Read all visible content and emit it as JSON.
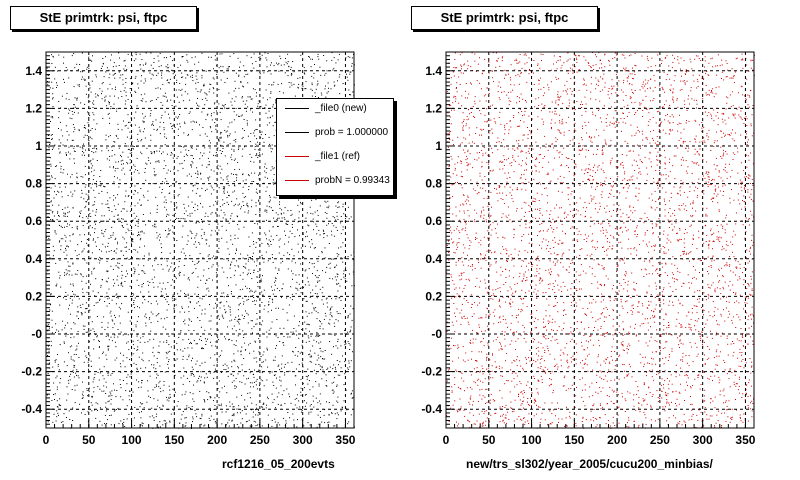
{
  "panels": [
    {
      "title": "StE primtrk: psi, ftpc",
      "footer": "rcf1216_05_200evts"
    },
    {
      "title": "StE primtrk: psi, ftpc",
      "footer": "new/trs_sl302/year_2005/cucu200_minbias/"
    }
  ],
  "legend": {
    "entries": [
      {
        "label": "_file0 (new)",
        "color": "#000000"
      },
      {
        "label": "prob = 1.000000",
        "color": "#000000"
      },
      {
        "label": "_file1 (ref)",
        "color": "#cc0000"
      },
      {
        "label": "probN = 0.99343",
        "color": "#cc0000"
      }
    ]
  },
  "colors": {
    "new_points": "#000000",
    "ref_points": "#cc0000",
    "axis": "#000000",
    "grid": "#000000"
  },
  "chart_data": [
    {
      "type": "scatter",
      "title": "StE primtrk: psi, ftpc",
      "xlabel": "",
      "ylabel": "",
      "xlim": [
        0,
        360
      ],
      "ylim": [
        -0.5,
        1.5
      ],
      "x_ticks": [
        "0",
        "50",
        "100",
        "150",
        "200",
        "250",
        "300",
        "350"
      ],
      "x_tick_values": [
        0,
        50,
        100,
        150,
        200,
        250,
        300,
        350
      ],
      "y_ticks": [
        "-0.4",
        "-0.2",
        "-0",
        "0.2",
        "0.4",
        "0.6",
        "0.8",
        "1",
        "1.2",
        "1.4"
      ],
      "y_tick_values": [
        -0.4,
        -0.2,
        0,
        0.2,
        0.4,
        0.6,
        0.8,
        1.0,
        1.2,
        1.4
      ],
      "grid": true,
      "series": [
        {
          "name": "_file0 (new)",
          "color": "#000000",
          "distribution": "uniform scatter",
          "x_range": [
            0,
            360
          ],
          "y_range": [
            -0.5,
            1.5
          ]
        }
      ]
    },
    {
      "type": "scatter",
      "title": "StE primtrk: psi, ftpc",
      "xlabel": "",
      "ylabel": "",
      "xlim": [
        0,
        360
      ],
      "ylim": [
        -0.5,
        1.5
      ],
      "x_ticks": [
        "0",
        "50",
        "100",
        "150",
        "200",
        "250",
        "300",
        "350"
      ],
      "x_tick_values": [
        0,
        50,
        100,
        150,
        200,
        250,
        300,
        350
      ],
      "y_ticks": [
        "-0.4",
        "-0.2",
        "-0",
        "0.2",
        "0.4",
        "0.6",
        "0.8",
        "1",
        "1.2",
        "1.4"
      ],
      "y_tick_values": [
        -0.4,
        -0.2,
        0,
        0.2,
        0.4,
        0.6,
        0.8,
        1.0,
        1.2,
        1.4
      ],
      "grid": true,
      "series": [
        {
          "name": "_file1 (ref)",
          "color": "#cc0000",
          "distribution": "uniform scatter",
          "x_range": [
            0,
            360
          ],
          "y_range": [
            -0.5,
            1.5
          ]
        }
      ]
    }
  ]
}
